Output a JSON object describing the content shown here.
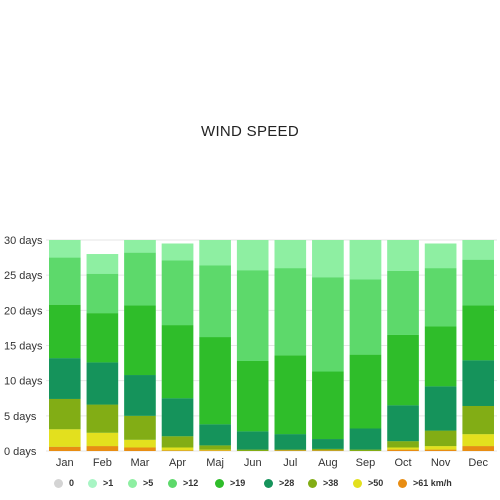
{
  "chart_data": {
    "type": "bar",
    "stacked": true,
    "title": "WIND SPEED",
    "categories": [
      "Jan",
      "Feb",
      "Mar",
      "Apr",
      "Maj",
      "Jun",
      "Jul",
      "Aug",
      "Sep",
      "Oct",
      "Nov",
      "Dec"
    ],
    "month_totals": [
      30,
      28,
      30,
      29.5,
      30,
      30,
      30,
      30,
      30,
      30,
      29.5,
      30
    ],
    "y_ticks": [
      "0 days",
      "5 days",
      "10 days",
      "15 days",
      "20 days",
      "25 days",
      "30 days"
    ],
    "ylim": [
      0,
      30
    ],
    "grid": true,
    "legend_position": "bottom",
    "series": [
      {
        "name": "0",
        "color": "#d4d4d4",
        "values": [
          0,
          0,
          0,
          0,
          0,
          0,
          0,
          0,
          0,
          0,
          0,
          0
        ]
      },
      {
        "name": ">1",
        "color": "#a8f5c4",
        "values": [
          0,
          0,
          0,
          0,
          0,
          0,
          0,
          0,
          0,
          0,
          0,
          0
        ]
      },
      {
        "name": ">5",
        "color": "#8eefa2",
        "values": [
          2.5,
          2.8,
          1.8,
          2.4,
          3.6,
          4.3,
          4.0,
          5.3,
          5.6,
          4.4,
          3.5,
          2.8
        ]
      },
      {
        "name": ">12",
        "color": "#5dd96b",
        "values": [
          6.7,
          5.6,
          7.5,
          9.2,
          10.2,
          12.9,
          12.4,
          13.4,
          10.7,
          9.1,
          8.3,
          6.5
        ]
      },
      {
        "name": ">19",
        "color": "#2fbd2a",
        "values": [
          7.6,
          7.0,
          9.9,
          10.4,
          12.4,
          10.0,
          11.2,
          9.6,
          10.5,
          10.0,
          8.5,
          7.8
        ]
      },
      {
        "name": ">28",
        "color": "#15935b",
        "values": [
          5.8,
          6.0,
          5.8,
          5.4,
          3.0,
          2.6,
          2.2,
          1.4,
          3.0,
          5.1,
          6.3,
          6.5
        ]
      },
      {
        "name": ">38",
        "color": "#82ad15",
        "values": [
          4.3,
          4.0,
          3.4,
          1.6,
          0.6,
          0.2,
          0.1,
          0.2,
          0.2,
          0.9,
          2.2,
          4.0
        ]
      },
      {
        "name": ">50",
        "color": "#e3e01e",
        "values": [
          2.5,
          1.9,
          1.1,
          0.4,
          0.1,
          0,
          0,
          0,
          0,
          0.3,
          0.5,
          1.7
        ]
      },
      {
        "name": ">61 km/h",
        "color": "#e88d13",
        "values": [
          0.6,
          0.7,
          0.5,
          0.1,
          0.1,
          0,
          0.1,
          0.1,
          0,
          0.2,
          0.2,
          0.7
        ]
      }
    ]
  }
}
